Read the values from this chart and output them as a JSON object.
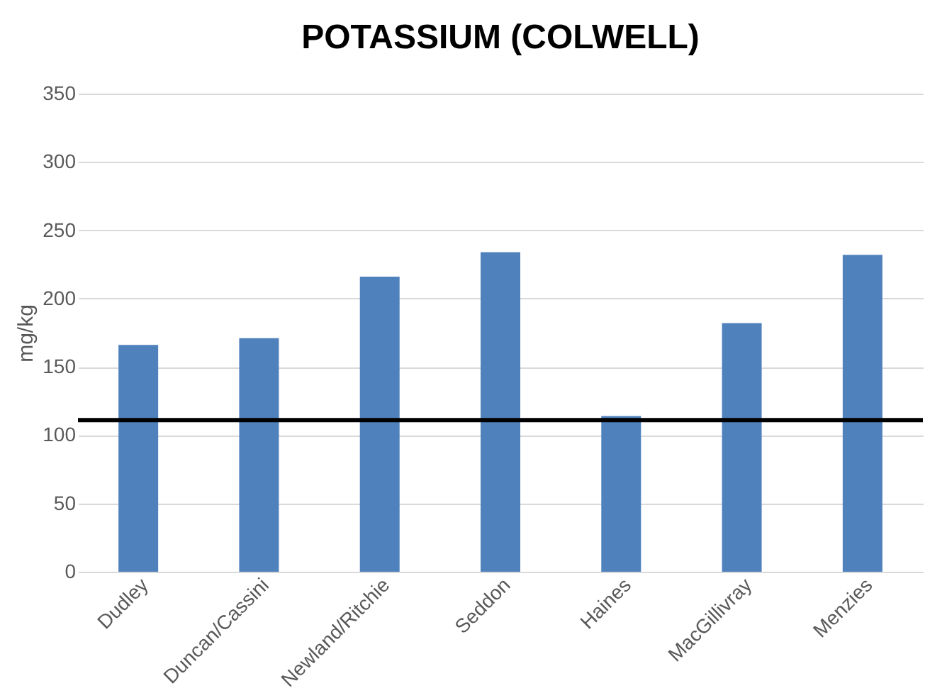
{
  "chart_data": {
    "type": "bar",
    "title": "POTASSIUM (COLWELL)",
    "ylabel": "mg/kg",
    "categories": [
      "Dudley",
      "Duncan/Cassini",
      "Newland/Ritchie",
      "Seddon",
      "Haines",
      "MacGillivray",
      "Menzies"
    ],
    "values": [
      166,
      171,
      216,
      234,
      114,
      182,
      232
    ],
    "color": "#4f81bd",
    "ylim": [
      0,
      350
    ],
    "yticks": [
      0,
      50,
      100,
      150,
      200,
      250,
      300,
      350
    ],
    "grid": "y",
    "ref_lines": [
      {
        "axis": "y",
        "value": 111,
        "color": "#000000",
        "line_style": "solid"
      }
    ]
  }
}
